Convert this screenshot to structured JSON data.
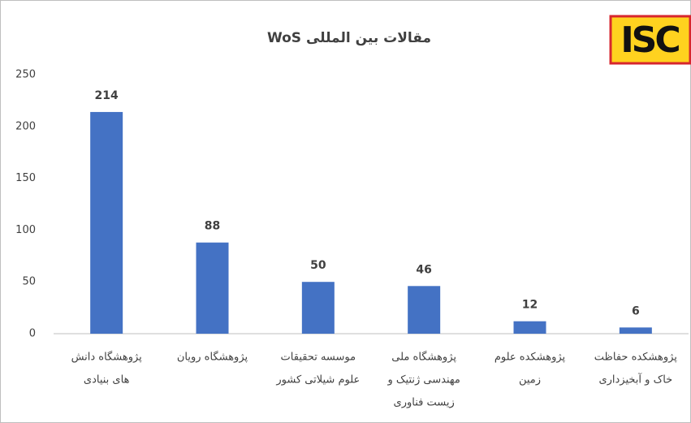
{
  "chart_data": {
    "type": "bar",
    "title": "مقالات بین المللی WoS",
    "logo": "ISC",
    "categories": [
      [
        "پژوهشگاه دانش",
        "های بنیادی"
      ],
      [
        "پژوهشگاه رویان"
      ],
      [
        "موسسه تحقیقات",
        "علوم شیلاتی کشور"
      ],
      [
        "پژوهشگاه ملی",
        "مهندسی ژنتیک و",
        "زیست فناوری"
      ],
      [
        "پژوهشکده علوم",
        "زمین"
      ],
      [
        "پژوهشکده حفاظت",
        "خاک و آبخیزداری"
      ]
    ],
    "values": [
      214,
      88,
      50,
      46,
      12,
      6
    ],
    "color": "#4472c4",
    "ylim": [
      0,
      250
    ],
    "yticks": [
      0,
      50,
      100,
      150,
      200,
      250
    ],
    "grid": false
  }
}
